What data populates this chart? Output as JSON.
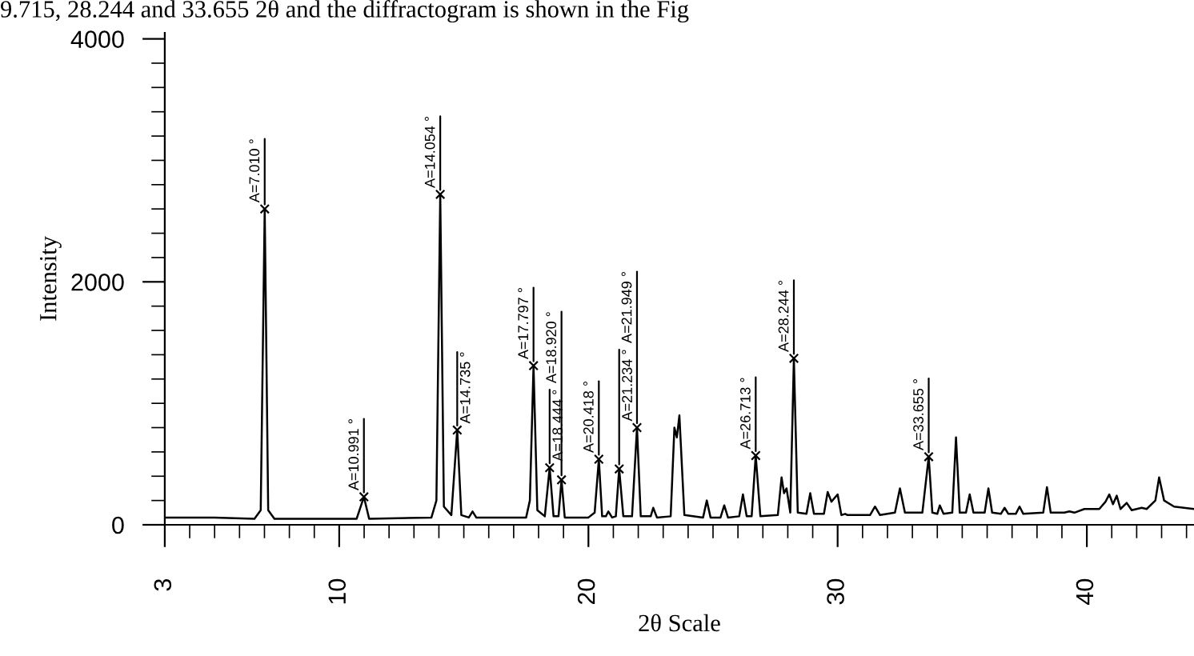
{
  "chart_data": {
    "type": "line",
    "xlabel": "2θ Scale",
    "ylabel": "Intensity",
    "xlim": [
      3,
      44.3
    ],
    "ylim": [
      0,
      4050
    ],
    "xticks": [
      3,
      {
        "value": 4,
        "label": null
      },
      {
        "value": 5,
        "label": null
      },
      {
        "value": 6,
        "label": null
      },
      {
        "value": 7,
        "label": null
      },
      {
        "value": 8,
        "label": null
      },
      {
        "value": 9,
        "label": null
      },
      10,
      {
        "value": 11,
        "label": null
      },
      {
        "value": 12,
        "label": null
      },
      {
        "value": 13,
        "label": null
      },
      {
        "value": 14,
        "label": null
      },
      {
        "value": 15,
        "label": null
      },
      {
        "value": 16,
        "label": null
      },
      {
        "value": 17,
        "label": null
      },
      {
        "value": 18,
        "label": null
      },
      {
        "value": 19,
        "label": null
      },
      20,
      {
        "value": 21,
        "label": null
      },
      {
        "value": 22,
        "label": null
      },
      {
        "value": 23,
        "label": null
      },
      {
        "value": 24,
        "label": null
      },
      {
        "value": 25,
        "label": null
      },
      {
        "value": 26,
        "label": null
      },
      {
        "value": 27,
        "label": null
      },
      {
        "value": 28,
        "label": null
      },
      {
        "value": 29,
        "label": null
      },
      30,
      {
        "value": 31,
        "label": null
      },
      {
        "value": 32,
        "label": null
      },
      {
        "value": 33,
        "label": null
      },
      {
        "value": 34,
        "label": null
      },
      {
        "value": 35,
        "label": null
      },
      {
        "value": 36,
        "label": null
      },
      {
        "value": 37,
        "label": null
      },
      {
        "value": 38,
        "label": null
      },
      {
        "value": 39,
        "label": null
      },
      40,
      {
        "value": 41,
        "label": null
      },
      {
        "value": 42,
        "label": null
      },
      {
        "value": 43,
        "label": null
      },
      {
        "value": 44,
        "label": null
      }
    ],
    "yticks": [
      0,
      {
        "value": 200,
        "label": null
      },
      {
        "value": 400,
        "label": null
      },
      {
        "value": 600,
        "label": null
      },
      {
        "value": 800,
        "label": null
      },
      {
        "value": 1000,
        "label": null
      },
      {
        "value": 1200,
        "label": null
      },
      {
        "value": 1400,
        "label": null
      },
      {
        "value": 1600,
        "label": null
      },
      {
        "value": 1800,
        "label": null
      },
      2000,
      {
        "value": 2200,
        "label": null
      },
      {
        "value": 2400,
        "label": null
      },
      {
        "value": 2600,
        "label": null
      },
      {
        "value": 2800,
        "label": null
      },
      {
        "value": 3000,
        "label": null
      },
      {
        "value": 3200,
        "label": null
      },
      {
        "value": 3400,
        "label": null
      },
      {
        "value": 3600,
        "label": null
      },
      {
        "value": 3800,
        "label": null
      },
      4000
    ],
    "grid": false,
    "legend": false,
    "series": [
      {
        "type": "line",
        "color": "#000000",
        "marker": "none",
        "x": [
          3.0,
          5.0,
          6.6,
          6.85,
          7.01,
          7.15,
          7.4,
          10.7,
          10.99,
          11.2,
          13.7,
          13.9,
          14.054,
          14.2,
          14.5,
          14.735,
          14.9,
          15.2,
          15.35,
          15.5,
          17.5,
          17.65,
          17.797,
          17.95,
          18.25,
          18.444,
          18.6,
          18.8,
          18.92,
          19.05,
          20.0,
          20.25,
          20.418,
          20.55,
          20.7,
          20.8,
          20.95,
          21.1,
          21.234,
          21.4,
          21.75,
          21.949,
          22.1,
          22.5,
          22.6,
          22.75,
          23.3,
          23.45,
          23.55,
          23.65,
          23.85,
          24.6,
          24.75,
          24.9,
          25.3,
          25.45,
          25.6,
          26.05,
          26.2,
          26.35,
          26.55,
          26.713,
          26.9,
          27.6,
          27.75,
          27.85,
          27.95,
          28.1,
          28.244,
          28.4,
          28.75,
          28.9,
          29.05,
          29.45,
          29.6,
          29.75,
          30.0,
          30.15,
          30.3,
          30.4,
          31.3,
          31.5,
          31.7,
          32.3,
          32.5,
          32.7,
          33.4,
          33.655,
          33.8,
          34.0,
          34.1,
          34.25,
          34.6,
          34.75,
          34.9,
          35.15,
          35.3,
          35.45,
          35.9,
          36.05,
          36.2,
          36.55,
          36.7,
          36.85,
          37.15,
          37.3,
          37.45,
          38.25,
          38.4,
          38.55,
          39.1,
          39.3,
          39.5,
          39.9,
          40.5,
          40.75,
          40.9,
          41.05,
          41.2,
          41.35,
          41.6,
          41.8,
          42.2,
          42.4,
          42.75,
          42.9,
          43.1,
          43.5,
          44.3
        ],
        "values": [
          60,
          60,
          50,
          120,
          2600,
          120,
          50,
          50,
          230,
          50,
          60,
          200,
          2720,
          150,
          80,
          780,
          80,
          60,
          110,
          60,
          60,
          200,
          1310,
          120,
          70,
          470,
          70,
          70,
          370,
          60,
          60,
          100,
          540,
          70,
          70,
          110,
          60,
          70,
          460,
          70,
          70,
          800,
          70,
          70,
          140,
          60,
          70,
          800,
          720,
          900,
          80,
          60,
          200,
          60,
          60,
          160,
          60,
          70,
          250,
          70,
          70,
          570,
          70,
          80,
          390,
          260,
          300,
          100,
          1370,
          100,
          90,
          260,
          90,
          90,
          270,
          190,
          250,
          80,
          90,
          80,
          80,
          150,
          80,
          100,
          300,
          100,
          100,
          560,
          100,
          90,
          160,
          90,
          100,
          720,
          100,
          100,
          250,
          100,
          100,
          300,
          100,
          90,
          140,
          90,
          90,
          150,
          90,
          100,
          310,
          100,
          100,
          110,
          100,
          130,
          130,
          190,
          250,
          170,
          240,
          130,
          180,
          120,
          140,
          130,
          200,
          390,
          200,
          150,
          130
        ]
      },
      {
        "type": "scatter",
        "color": "#000000",
        "marker": "cross",
        "x": [
          7.01,
          10.991,
          14.054,
          14.735,
          17.797,
          18.444,
          18.92,
          20.418,
          21.234,
          21.949,
          26.713,
          28.244,
          33.655
        ],
        "values": [
          2600,
          230,
          2720,
          780,
          1310,
          470,
          370,
          540,
          460,
          800,
          570,
          1370,
          560
        ]
      }
    ],
    "annotations": [
      "9.715, 28.244 and 33.655 2θ and the diffractogram is shown in the Fig",
      {
        "text": "A=7.010 °",
        "x": 7.01,
        "y": 2600
      },
      {
        "text": "A=10.991 °",
        "x": 10.991,
        "y": 230
      },
      {
        "text": "A=14.054 °",
        "x": 14.054,
        "y": 2720
      },
      {
        "text": "A=14.735 °",
        "x": 14.735,
        "y": 780
      },
      {
        "text": "A=17.797 °",
        "x": 17.797,
        "y": 1310
      },
      {
        "text": "A=18.444 °",
        "x": 18.444,
        "y": 470
      },
      {
        "text": "A=18.920 °",
        "x": 18.92,
        "y": 370
      },
      {
        "text": "A=20.418 °",
        "x": 20.418,
        "y": 540
      },
      {
        "text": "A=21.234 °",
        "x": 21.234,
        "y": 460
      },
      {
        "text": "A=21.949 °",
        "x": 21.949,
        "y": 800
      },
      {
        "text": "A=26.713 °",
        "x": 26.713,
        "y": 570
      },
      {
        "text": "A=28.244 °",
        "x": 28.244,
        "y": 1370
      },
      {
        "text": "A=33.655 °",
        "x": 33.655,
        "y": 560
      }
    ]
  }
}
